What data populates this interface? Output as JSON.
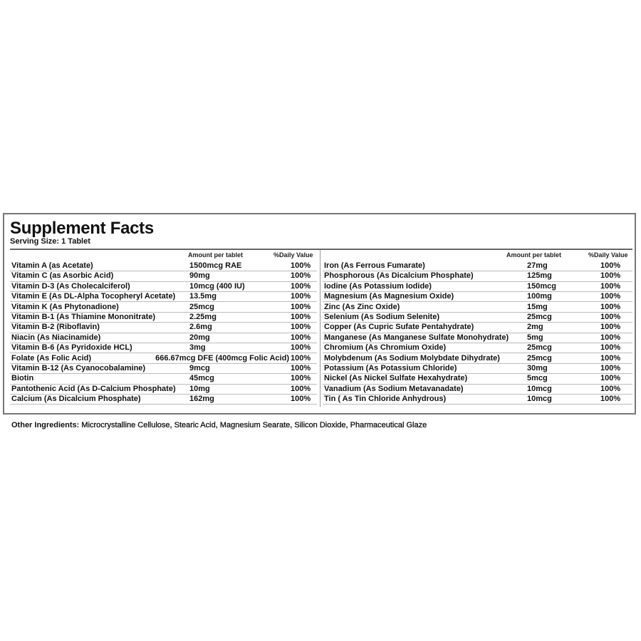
{
  "title": "Supplement Facts",
  "serving_size": "Serving Size: 1 Tablet",
  "headers": {
    "amount": "Amount per tablet",
    "dv": "%Daily Value"
  },
  "left_rows": [
    {
      "name": "Vitamin A (as Acetate)",
      "amount": "1500mcg RAE",
      "dv": "100%"
    },
    {
      "name": "Vitamin C (as Asorbic Acid)",
      "amount": "90mg",
      "dv": "100%"
    },
    {
      "name": "Vitamin D-3 (As Cholecalciferol)",
      "amount": "10mcg (400 IU)",
      "dv": "100%"
    },
    {
      "name": "Vitamin E (As DL-Alpha Tocopheryl Acetate)",
      "amount": "13.5mg",
      "dv": "100%"
    },
    {
      "name": "Vitamin K (As Phytonadione)",
      "amount": "25mcg",
      "dv": "100%"
    },
    {
      "name": "Vitamin B-1 (As Thiamine Mononitrate)",
      "amount": "2.25mg",
      "dv": "100%"
    },
    {
      "name": "Vitamin B-2 (Riboflavin)",
      "amount": "2.6mg",
      "dv": "100%"
    },
    {
      "name": "Niacin (As Niacinamide)",
      "amount": "20mg",
      "dv": "100%"
    },
    {
      "name": "Vitamin B-6 (As Pyridoxide HCL)",
      "amount": "3mg",
      "dv": "100%"
    },
    {
      "name": "Folate (As Folic Acid)",
      "amount": "666.67mcg DFE (400mcg Folic Acid)",
      "dv": "100%"
    },
    {
      "name": "Vitamin B-12 (As Cyanocobalamine)",
      "amount": "9mcg",
      "dv": "100%"
    },
    {
      "name": "Biotin",
      "amount": "45mcg",
      "dv": "100%"
    },
    {
      "name": "Pantothenic Acid (As D-Calcium Phosphate)",
      "amount": "10mg",
      "dv": "100%"
    },
    {
      "name": "Calcium (As Dicalcium Phosphate)",
      "amount": "162mg",
      "dv": "100%"
    }
  ],
  "right_rows": [
    {
      "name": "Iron (As Ferrous Fumarate)",
      "amount": "27mg",
      "dv": "100%"
    },
    {
      "name": "Phosphorous (As Dicalcium Phosphate)",
      "amount": "125mg",
      "dv": "100%"
    },
    {
      "name": "Iodine (As Potassium Iodide)",
      "amount": "150mcg",
      "dv": "100%"
    },
    {
      "name": "Magnesium (As Magnesium Oxide)",
      "amount": "100mg",
      "dv": "100%"
    },
    {
      "name": "Zinc (As Zinc Oxide)",
      "amount": "15mg",
      "dv": "100%"
    },
    {
      "name": "Selenium (As Sodium Selenite)",
      "amount": "25mcg",
      "dv": "100%"
    },
    {
      "name": "Copper (As Cupric Sufate Pentahydrate)",
      "amount": "2mg",
      "dv": "100%"
    },
    {
      "name": "Manganese (As Manganese Sulfate Monohydrate)",
      "amount": "5mg",
      "dv": "100%"
    },
    {
      "name": "Chromium (As Chromium Oxide)",
      "amount": "25mcg",
      "dv": "100%"
    },
    {
      "name": "Molybdenum (As Sodium Molybdate Dihydrate)",
      "amount": "25mcg",
      "dv": "100%"
    },
    {
      "name": "Potassium (As Potassium Chloride)",
      "amount": "30mg",
      "dv": "100%"
    },
    {
      "name": "Nickel (As Nickel Sulfate Hexahydrate)",
      "amount": "5mcg",
      "dv": "100%"
    },
    {
      "name": "Vanadium (As Sodium Metavanadate)",
      "amount": "10mcg",
      "dv": "100%"
    },
    {
      "name": "Tin ( As Tin Chloride Anhydrous)",
      "amount": "10mcg",
      "dv": "100%"
    }
  ],
  "other_ingredients": {
    "label": "Other Ingredients:",
    "text": "Microcrystalline Cellulose, Stearic Acid, Magnesium Searate, Silicon Dioxide, Pharmaceutical Glaze"
  }
}
